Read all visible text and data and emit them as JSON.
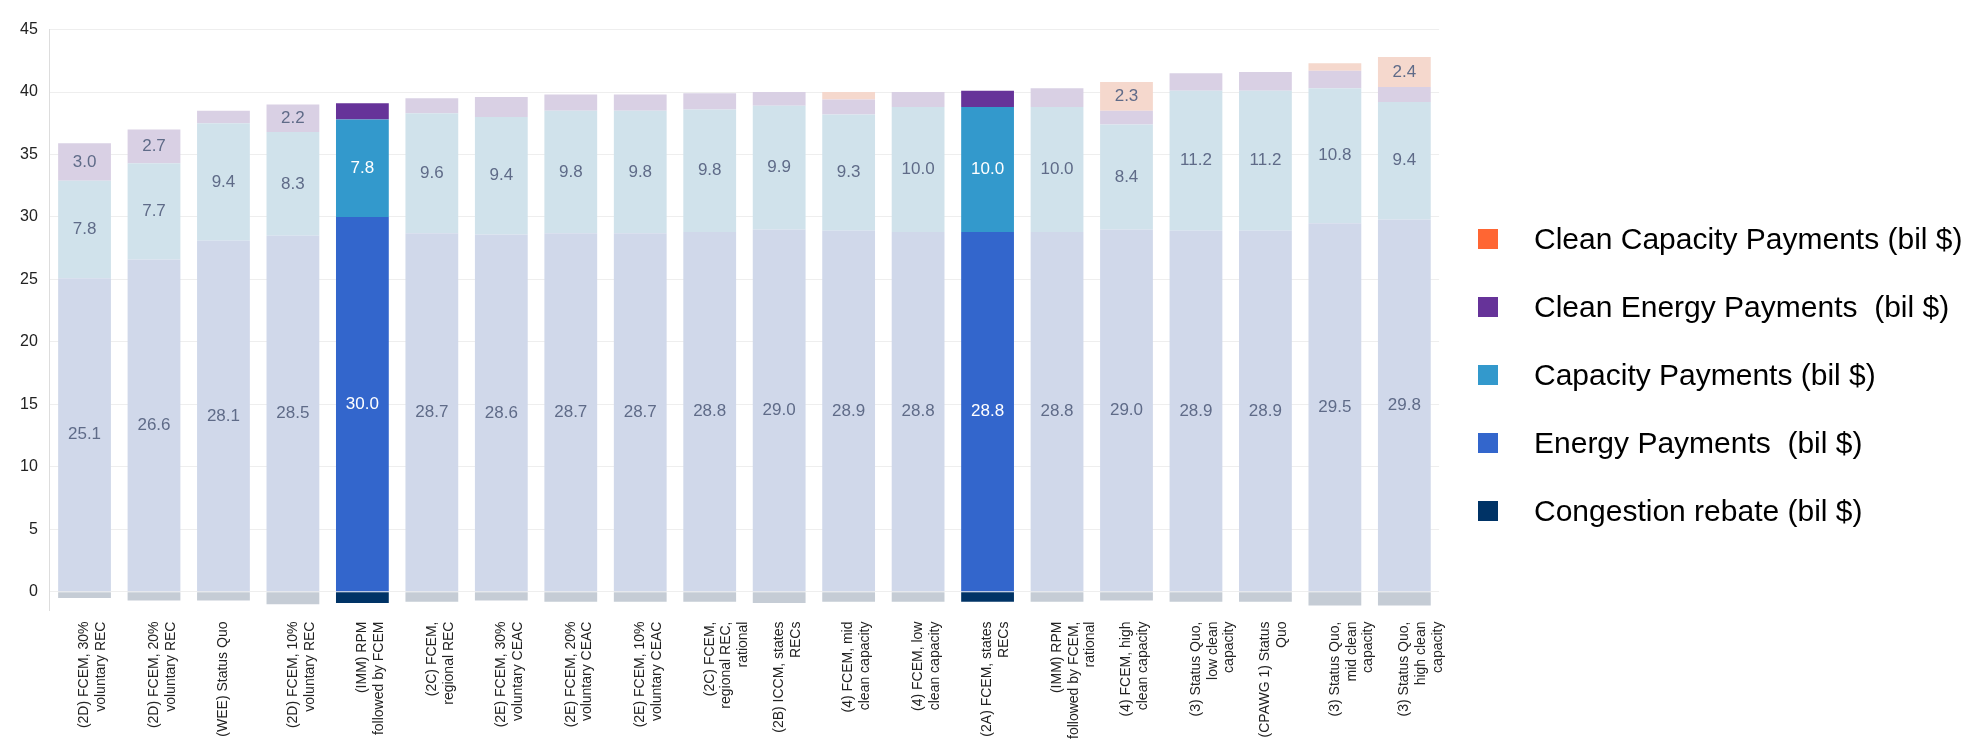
{
  "chart_data": {
    "type": "bar",
    "stacked": true,
    "grid": "y",
    "legend": "right",
    "data_labels": false,
    "categories": [
      "(2D) FCEM, 30% voluntary REC",
      "(2D) FCEM, 20% voluntary REC",
      "(WEE) Status Quo",
      "(2D) FCEM, 10% voluntary REC",
      "(IMM) RPM followed by FCEM",
      "(2C) FCEM, regional REC",
      "(2E) FCEM, 30% voluntary CEAC",
      "(2E) FCEM, 20% voluntary CEAC",
      "(2E) FCEM, 10% voluntary CEAC",
      "(2C) FCEM, regional REC, rational",
      "(2B) ICCM, states RECs",
      "(4) FCEM, mid clean capacity",
      "(4) FCEM, low clean capacity",
      "(2A) FCEM, states RECs",
      "(IMM) RPM followed by FCEM, rational",
      "(4) FCEM, high clean capacity",
      "(3) Status Quo, low clean capacity",
      "(CPAWG 1) Status Quo",
      "(3) Status Quo, mid clean capacity",
      "(3) Status Quo, high clean capacity"
    ],
    "ylim": [
      -1.5,
      45
    ],
    "yticks": [
      0,
      5,
      10,
      15,
      20,
      25,
      30,
      35,
      40,
      45
    ],
    "series": [
      {
        "name": "Congestion rebate (bil $)",
        "color": "#003366",
        "values": [
          -0.5,
          -0.7,
          -0.7,
          -1.0,
          -0.9,
          -0.8,
          -0.7,
          -0.8,
          -0.8,
          -0.8,
          -0.9,
          -0.8,
          -0.8,
          -0.8,
          -0.8,
          -0.7,
          -0.8,
          -0.8,
          -1.1,
          -1.1
        ],
        "colors": [
          "#c5ccd5",
          "#c5ccd5",
          "#c5ccd5",
          "#c5ccd5",
          "#003366",
          "#c5ccd5",
          "#c5ccd5",
          "#c5ccd5",
          "#c5ccd5",
          "#c5ccd5",
          "#c5ccd5",
          "#c5ccd5",
          "#c5ccd5",
          "#003366",
          "#c5ccd5",
          "#c5ccd5",
          "#c5ccd5",
          "#c5ccd5",
          "#c5ccd5",
          "#c5ccd5"
        ]
      },
      {
        "name": "Energy Payments  (bil $)",
        "color": "#3366cc",
        "values": [
          25.1,
          26.6,
          28.1,
          28.5,
          30.0,
          28.7,
          28.6,
          28.7,
          28.7,
          28.8,
          29.0,
          28.9,
          28.8,
          28.8,
          28.8,
          29.0,
          28.9,
          28.9,
          29.5,
          29.8
        ],
        "value_labels": [
          "25.1",
          "26.6",
          "28.1",
          "28.5",
          "30.0",
          "28.7",
          "28.6",
          "28.7",
          "28.7",
          "28.8",
          "29.0",
          "28.9",
          "28.8",
          "28.8",
          "28.8",
          "29.0",
          "28.9",
          "28.9",
          "29.5",
          "29.8"
        ],
        "colors": [
          "#d0d8ea",
          "#d0d8ea",
          "#d0d8ea",
          "#d0d8ea",
          "#3366cc",
          "#d0d8ea",
          "#d0d8ea",
          "#d0d8ea",
          "#d0d8ea",
          "#d0d8ea",
          "#d0d8ea",
          "#d0d8ea",
          "#d0d8ea",
          "#3366cc",
          "#d0d8ea",
          "#d0d8ea",
          "#d0d8ea",
          "#d0d8ea",
          "#d0d8ea",
          "#d0d8ea"
        ]
      },
      {
        "name": "Capacity Payments (bil $)",
        "color": "#3399cc",
        "values": [
          7.8,
          7.7,
          9.4,
          8.3,
          7.8,
          9.6,
          9.4,
          9.8,
          9.8,
          9.8,
          9.9,
          9.3,
          10.0,
          10.0,
          10.0,
          8.4,
          11.2,
          11.2,
          10.8,
          9.4
        ],
        "value_labels": [
          "7.8",
          "7.7",
          "9.4",
          "8.3",
          "7.8",
          "9.6",
          "9.4",
          "9.8",
          "9.8",
          "9.8",
          "9.9",
          "9.3",
          "10.0",
          "10.0",
          "10.0",
          "8.4",
          "11.2",
          "11.2",
          "10.8",
          "9.4"
        ],
        "colors": [
          "#d0e2eb",
          "#d0e2eb",
          "#d0e2eb",
          "#d0e2eb",
          "#3399cc",
          "#d0e2eb",
          "#d0e2eb",
          "#d0e2eb",
          "#d0e2eb",
          "#d0e2eb",
          "#d0e2eb",
          "#d0e2eb",
          "#d0e2eb",
          "#3399cc",
          "#d0e2eb",
          "#d0e2eb",
          "#d0e2eb",
          "#d0e2eb",
          "#d0e2eb",
          "#d0e2eb"
        ]
      },
      {
        "name": "Clean Energy Payments  (bil $)",
        "color": "#663399",
        "values": [
          3.0,
          2.7,
          1.0,
          2.2,
          1.3,
          1.2,
          1.6,
          1.3,
          1.3,
          1.3,
          1.1,
          1.2,
          1.2,
          1.3,
          1.5,
          1.1,
          1.4,
          1.5,
          1.4,
          1.2
        ],
        "value_labels": [
          "3.0",
          "2.7",
          null,
          "2.2",
          null,
          null,
          null,
          null,
          null,
          null,
          null,
          null,
          null,
          null,
          null,
          null,
          null,
          null,
          null,
          null
        ],
        "colors": [
          "#d9d0e4",
          "#d9d0e4",
          "#d9d0e4",
          "#d9d0e4",
          "#663399",
          "#d9d0e4",
          "#d9d0e4",
          "#d9d0e4",
          "#d9d0e4",
          "#d9d0e4",
          "#d9d0e4",
          "#d9d0e4",
          "#d9d0e4",
          "#663399",
          "#d9d0e4",
          "#d9d0e4",
          "#d9d0e4",
          "#d9d0e4",
          "#d9d0e4",
          "#d9d0e4"
        ]
      },
      {
        "name": "Clean Capacity Payments (bil $)",
        "color": "#ff6633",
        "values": [
          null,
          null,
          null,
          null,
          null,
          null,
          null,
          null,
          null,
          null,
          null,
          0.6,
          null,
          null,
          null,
          2.3,
          null,
          null,
          0.6,
          2.4
        ],
        "value_labels": [
          null,
          null,
          null,
          null,
          null,
          null,
          null,
          null,
          null,
          null,
          null,
          null,
          null,
          null,
          null,
          "2.3",
          null,
          null,
          null,
          "2.4"
        ],
        "colors": [
          "#f5d8cd",
          "#f5d8cd",
          "#f5d8cd",
          "#f5d8cd",
          "#ff6633",
          "#f5d8cd",
          "#f5d8cd",
          "#f5d8cd",
          "#f5d8cd",
          "#f5d8cd",
          "#f5d8cd",
          "#f5d8cd",
          "#f5d8cd",
          "#ff6633",
          "#f5d8cd",
          "#f5d8cd",
          "#f5d8cd",
          "#f5d8cd",
          "#f5d8cd",
          "#f5d8cd"
        ]
      }
    ]
  }
}
